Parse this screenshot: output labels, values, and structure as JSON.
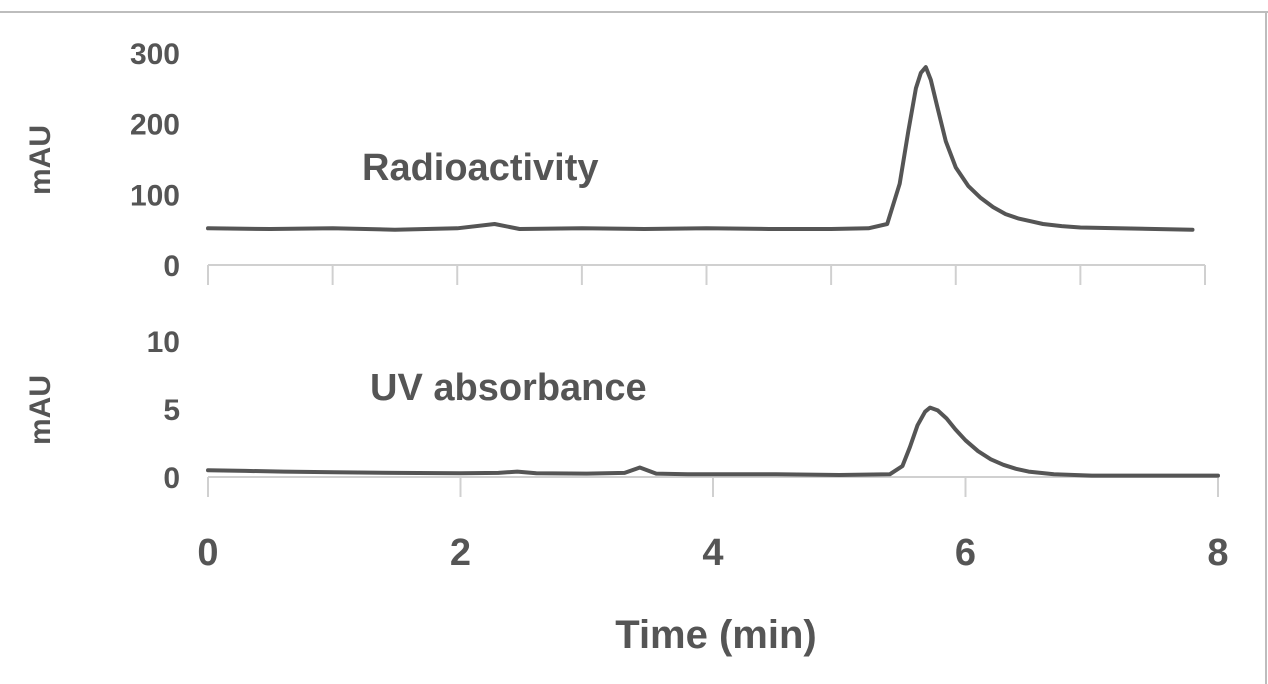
{
  "chart_data": [
    {
      "type": "line",
      "title": "",
      "ylabel": "mAU",
      "xlabel": "",
      "xlim": [
        0,
        8
      ],
      "ylim": [
        0,
        300
      ],
      "yticks": [
        0,
        100,
        200,
        300
      ],
      "ytick_labels": [
        "0",
        "100",
        "200",
        "300"
      ],
      "x_ticks": [
        0,
        1,
        2,
        3,
        4,
        5,
        6,
        7,
        8
      ],
      "annotation": "Radioactivity",
      "grid": false,
      "series": [
        {
          "color": "#555555",
          "x": [
            0,
            0.5,
            1.0,
            1.5,
            2.0,
            2.3,
            2.5,
            3.0,
            3.5,
            4.0,
            4.5,
            5.0,
            5.3,
            5.45,
            5.55,
            5.62,
            5.68,
            5.72,
            5.76,
            5.8,
            5.85,
            5.92,
            6.0,
            6.1,
            6.2,
            6.3,
            6.4,
            6.5,
            6.6,
            6.7,
            6.85,
            7.0,
            7.3,
            7.6,
            7.9
          ],
          "y": [
            52,
            51,
            52,
            50,
            52,
            58,
            51,
            52,
            51,
            52,
            51,
            51,
            52,
            58,
            115,
            190,
            250,
            272,
            280,
            262,
            225,
            175,
            138,
            112,
            95,
            82,
            72,
            66,
            62,
            58,
            55,
            53,
            52,
            51,
            50
          ]
        }
      ]
    },
    {
      "type": "line",
      "title": "",
      "ylabel": "mAU",
      "xlabel": "Time (min)",
      "xlim": [
        0,
        8
      ],
      "ylim": [
        0,
        10
      ],
      "yticks": [
        0,
        5,
        10
      ],
      "ytick_labels": [
        "0",
        "5",
        "10"
      ],
      "x_ticks": [
        0,
        2,
        4,
        6,
        8
      ],
      "x_tick_labels": [
        "0",
        "2",
        "4",
        "6",
        "8"
      ],
      "annotation": "UV absorbance",
      "grid": false,
      "series": [
        {
          "color": "#555555",
          "x": [
            0,
            0.3,
            0.6,
            1.0,
            1.5,
            2.0,
            2.3,
            2.45,
            2.6,
            3.0,
            3.3,
            3.42,
            3.55,
            3.8,
            4.0,
            4.5,
            5.0,
            5.4,
            5.5,
            5.56,
            5.62,
            5.68,
            5.72,
            5.78,
            5.85,
            5.92,
            6.0,
            6.1,
            6.2,
            6.3,
            6.4,
            6.5,
            6.7,
            7.0,
            7.5,
            8.0
          ],
          "y": [
            0.5,
            0.45,
            0.4,
            0.35,
            0.3,
            0.28,
            0.3,
            0.4,
            0.28,
            0.25,
            0.3,
            0.7,
            0.25,
            0.2,
            0.2,
            0.2,
            0.15,
            0.2,
            0.8,
            2.2,
            3.8,
            4.8,
            5.1,
            4.9,
            4.3,
            3.5,
            2.7,
            1.9,
            1.3,
            0.9,
            0.6,
            0.4,
            0.2,
            0.1,
            0.1,
            0.1
          ]
        }
      ]
    }
  ]
}
